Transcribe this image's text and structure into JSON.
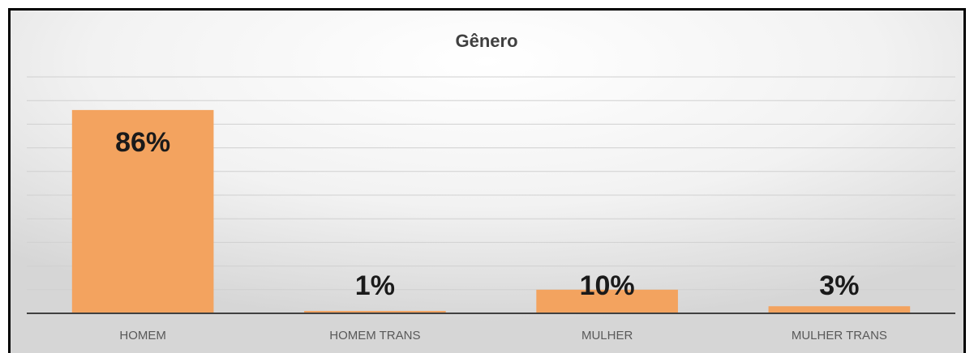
{
  "chart_data": {
    "type": "bar",
    "title": "Gênero",
    "categories": [
      "HOMEM",
      "HOMEM TRANS",
      "MULHER",
      "MULHER TRANS"
    ],
    "values": [
      86,
      1,
      10,
      3
    ],
    "value_labels": [
      "86%",
      "1%",
      "10%",
      "3%"
    ],
    "color": "#f3a35f",
    "ylim": [
      0,
      100
    ],
    "yticks": [
      0,
      10,
      20,
      30,
      40,
      50,
      60,
      70,
      80,
      90,
      100
    ],
    "grid": true
  }
}
